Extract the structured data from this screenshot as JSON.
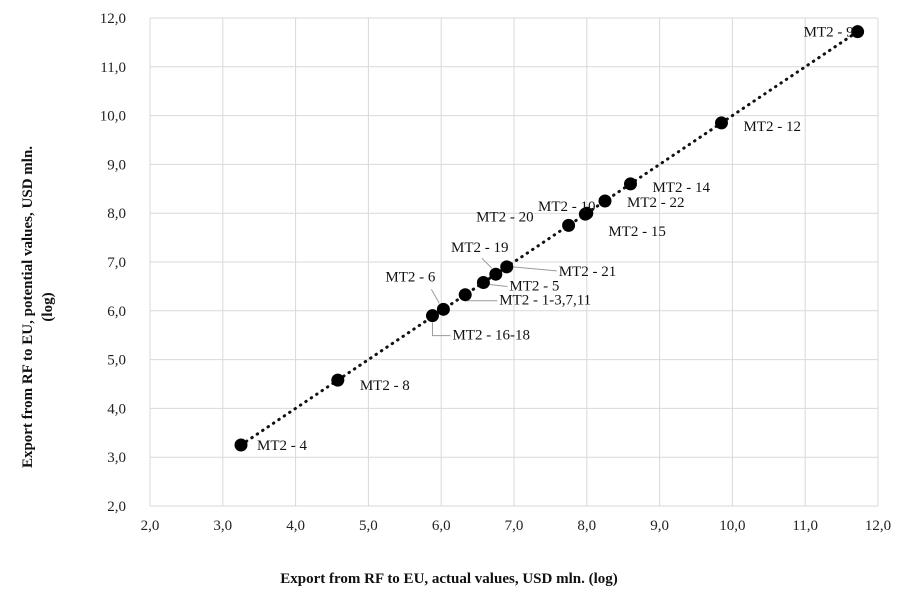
{
  "chart_data": {
    "type": "scatter",
    "xlabel": "Export from RF to EU, actual values, USD mln. (log)",
    "ylabel_lines": [
      "Export from RF to EU, potential values, USD mln.",
      "(log)"
    ],
    "xlim": [
      2.0,
      12.0
    ],
    "ylim": [
      2.0,
      12.0
    ],
    "x_ticks": [
      "2,0",
      "3,0",
      "4,0",
      "5,0",
      "6,0",
      "7,0",
      "8,0",
      "9,0",
      "10,0",
      "11,0",
      "12,0"
    ],
    "y_ticks": [
      "2,0",
      "3,0",
      "4,0",
      "5,0",
      "6,0",
      "7,0",
      "8,0",
      "9,0",
      "10,0",
      "11,0",
      "12,0"
    ],
    "grid": true,
    "trendline": {
      "style": "dotted",
      "from": [
        3.25,
        3.25
      ],
      "to": [
        11.72,
        11.72
      ]
    },
    "points": [
      {
        "label": "MT2 - 4",
        "x": 3.25,
        "y": 3.25
      },
      {
        "label": "MT2 - 8",
        "x": 4.58,
        "y": 4.58
      },
      {
        "label": "MT2 - 16-18",
        "x": 5.88,
        "y": 5.9
      },
      {
        "label": "MT2 - 6",
        "x": 6.03,
        "y": 6.03
      },
      {
        "label": "MT2 - 1-3,7,11",
        "x": 6.33,
        "y": 6.33
      },
      {
        "label": "MT2 - 5",
        "x": 6.58,
        "y": 6.58
      },
      {
        "label": "MT2 - 19",
        "x": 6.75,
        "y": 6.75
      },
      {
        "label": "MT2 - 21",
        "x": 6.9,
        "y": 6.9
      },
      {
        "label": "MT2 - 20",
        "x": 7.75,
        "y": 7.75
      },
      {
        "label": "MT2 - 15",
        "x": 7.98,
        "y": 7.98
      },
      {
        "label": "MT2 - 10",
        "x": 8.0,
        "y": 8.0
      },
      {
        "label": "MT2 - 22",
        "x": 8.25,
        "y": 8.25
      },
      {
        "label": "MT2 - 14",
        "x": 8.6,
        "y": 8.6
      },
      {
        "label": "MT2 - 12",
        "x": 9.85,
        "y": 9.85
      },
      {
        "label": "MT2 - 9",
        "x": 11.72,
        "y": 11.72
      }
    ]
  }
}
